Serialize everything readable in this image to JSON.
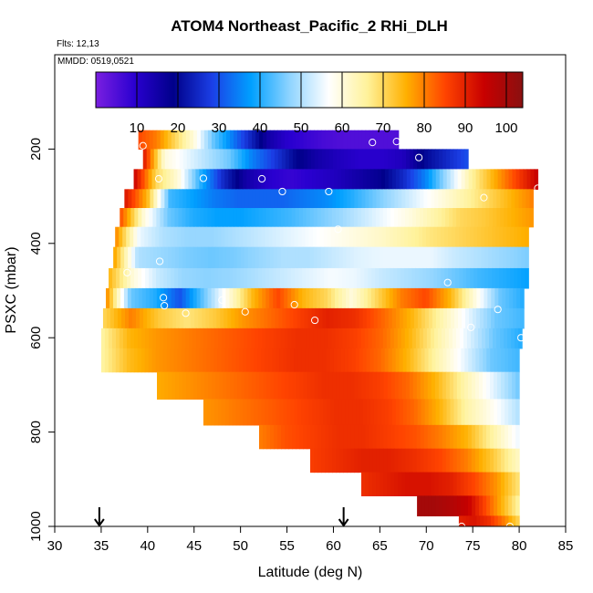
{
  "chart_data": {
    "type": "heatmap",
    "title": "ATOM4 Northeast_Pacific_2 RHi_DLH",
    "flights_label": "Flts: 12,13",
    "date_label": "MMDD: 0519,0521",
    "xlabel": "Latitude (deg N)",
    "ylabel": "PSXC (mbar)",
    "xlim": [
      30,
      85
    ],
    "ylim": [
      1000,
      0
    ],
    "x_ticks": [
      "30",
      "35",
      "40",
      "45",
      "50",
      "55",
      "60",
      "65",
      "70",
      "75",
      "80",
      "85"
    ],
    "y_ticks": [
      "200",
      "400",
      "600",
      "800",
      "1000"
    ],
    "colorbar": {
      "range": [
        0,
        104
      ],
      "tick_labels": [
        "10",
        "20",
        "30",
        "40",
        "50",
        "60",
        "70",
        "80",
        "90",
        "100"
      ],
      "stops": [
        "#7a1fe0",
        "#2a00d0",
        "#00008a",
        "#1b3fe6",
        "#00a0ff",
        "#8fd4ff",
        "#ffffff",
        "#fff29a",
        "#ffb000",
        "#ff4400",
        "#c80000",
        "#8a1010"
      ]
    },
    "arrows_at_latitude": [
      34.8,
      61.1
    ],
    "rows": [
      {
        "p": 180,
        "x0": 39,
        "x1": 67,
        "v": [
          85,
          80,
          70,
          60,
          45,
          35,
          25,
          15,
          10,
          8,
          6,
          5,
          5,
          5,
          5
        ]
      },
      {
        "p": 220,
        "x0": 39.5,
        "x1": 74.5,
        "v": [
          92,
          60,
          55,
          50,
          45,
          35,
          28,
          20,
          15,
          12,
          10,
          10,
          12,
          20,
          25,
          30
        ]
      },
      {
        "p": 265,
        "x0": 38.5,
        "x1": 82,
        "v": [
          95,
          70,
          60,
          40,
          25,
          15,
          10,
          8,
          10,
          12,
          15,
          18,
          25,
          35,
          50,
          65,
          75,
          85,
          95
        ]
      },
      {
        "p": 305,
        "x0": 37.5,
        "x1": 81.5,
        "v": [
          92,
          75,
          42,
          38,
          34,
          32,
          32,
          32,
          34,
          36,
          40,
          45,
          50,
          55,
          60,
          65,
          70,
          75,
          80
        ]
      },
      {
        "p": 345,
        "x0": 37,
        "x1": 81.5,
        "v": [
          85,
          60,
          45,
          40,
          38,
          38,
          40,
          42,
          45,
          48,
          52,
          56,
          60,
          65,
          70,
          72,
          75,
          78
        ]
      },
      {
        "p": 385,
        "x0": 36.5,
        "x1": 81,
        "v": [
          80,
          55,
          50,
          48,
          48,
          50,
          52,
          54,
          56,
          58,
          60,
          62,
          65,
          68,
          70,
          72,
          74,
          76
        ]
      },
      {
        "p": 430,
        "x0": 36.3,
        "x1": 81,
        "v": [
          78,
          50,
          48,
          46,
          45,
          46,
          48,
          50,
          50,
          52,
          54,
          55,
          55,
          55,
          52,
          50,
          48,
          46
        ]
      },
      {
        "p": 475,
        "x0": 35.8,
        "x1": 81,
        "v": [
          75,
          60,
          52,
          48,
          47,
          48,
          50,
          52,
          54,
          56,
          55,
          52,
          50,
          48,
          45,
          42,
          40,
          38
        ]
      },
      {
        "p": 515,
        "x0": 35.5,
        "x1": 80.5,
        "v": [
          80,
          45,
          40,
          30,
          45,
          60,
          75,
          85,
          75,
          70,
          60,
          70,
          80,
          85,
          75,
          60,
          45,
          40
        ]
      },
      {
        "p": 560,
        "x0": 35.2,
        "x1": 80.5,
        "v": [
          70,
          80,
          72,
          68,
          72,
          78,
          82,
          86,
          90,
          88,
          82,
          75,
          65,
          55,
          45,
          42
        ]
      },
      {
        "p": 600,
        "x0": 35,
        "x1": 80.3,
        "v": [
          65,
          75,
          78,
          80,
          82,
          84,
          86,
          88,
          88,
          86,
          82,
          75,
          65,
          55,
          45,
          40
        ]
      },
      {
        "p": 645,
        "x0": 35,
        "x1": 80,
        "v": [
          65,
          74,
          78,
          80,
          82,
          84,
          86,
          88,
          88,
          86,
          82,
          75,
          65,
          55,
          45,
          42
        ]
      },
      {
        "p": 700,
        "x0": 41,
        "x1": 80,
        "v": [
          76,
          78,
          80,
          82,
          84,
          86,
          88,
          88,
          86,
          82,
          75,
          65,
          55,
          45
        ]
      },
      {
        "p": 760,
        "x0": 46,
        "x1": 80,
        "v": [
          78,
          80,
          82,
          84,
          86,
          88,
          88,
          86,
          82,
          75,
          65,
          58,
          50
        ]
      },
      {
        "p": 810,
        "x0": 52,
        "x1": 80,
        "v": [
          80,
          84,
          86,
          88,
          88,
          86,
          84,
          80,
          75,
          65,
          55
        ]
      },
      {
        "p": 860,
        "x0": 57.5,
        "x1": 80,
        "v": [
          86,
          88,
          90,
          90,
          88,
          85,
          80,
          72,
          62
        ]
      },
      {
        "p": 910,
        "x0": 63,
        "x1": 80,
        "v": [
          88,
          90,
          92,
          92,
          90,
          85,
          78,
          68
        ]
      },
      {
        "p": 960,
        "x0": 69,
        "x1": 80,
        "v": [
          100,
          100,
          98,
          95,
          85,
          75,
          65
        ]
      },
      {
        "p": 995,
        "x0": 73.5,
        "x1": 80,
        "v": [
          90,
          92,
          88,
          80,
          70
        ]
      }
    ],
    "points": [
      {
        "lat": 39.5,
        "p": 193
      },
      {
        "lat": 41.2,
        "p": 263
      },
      {
        "lat": 46,
        "p": 262
      },
      {
        "lat": 52.3,
        "p": 263
      },
      {
        "lat": 54.5,
        "p": 290
      },
      {
        "lat": 59.5,
        "p": 290
      },
      {
        "lat": 64.2,
        "p": 186
      },
      {
        "lat": 66.8,
        "p": 184
      },
      {
        "lat": 69.2,
        "p": 218
      },
      {
        "lat": 76.2,
        "p": 303
      },
      {
        "lat": 82,
        "p": 283
      },
      {
        "lat": 60.5,
        "p": 370
      },
      {
        "lat": 41.3,
        "p": 438
      },
      {
        "lat": 37.8,
        "p": 462
      },
      {
        "lat": 41.7,
        "p": 515
      },
      {
        "lat": 41.8,
        "p": 532
      },
      {
        "lat": 44.1,
        "p": 548
      },
      {
        "lat": 48,
        "p": 520
      },
      {
        "lat": 50.5,
        "p": 545
      },
      {
        "lat": 55.8,
        "p": 530
      },
      {
        "lat": 58,
        "p": 563
      },
      {
        "lat": 72.3,
        "p": 483
      },
      {
        "lat": 74.8,
        "p": 578
      },
      {
        "lat": 77.7,
        "p": 540
      },
      {
        "lat": 80.2,
        "p": 600
      },
      {
        "lat": 73.8,
        "p": 1000
      },
      {
        "lat": 79,
        "p": 1000
      }
    ]
  }
}
